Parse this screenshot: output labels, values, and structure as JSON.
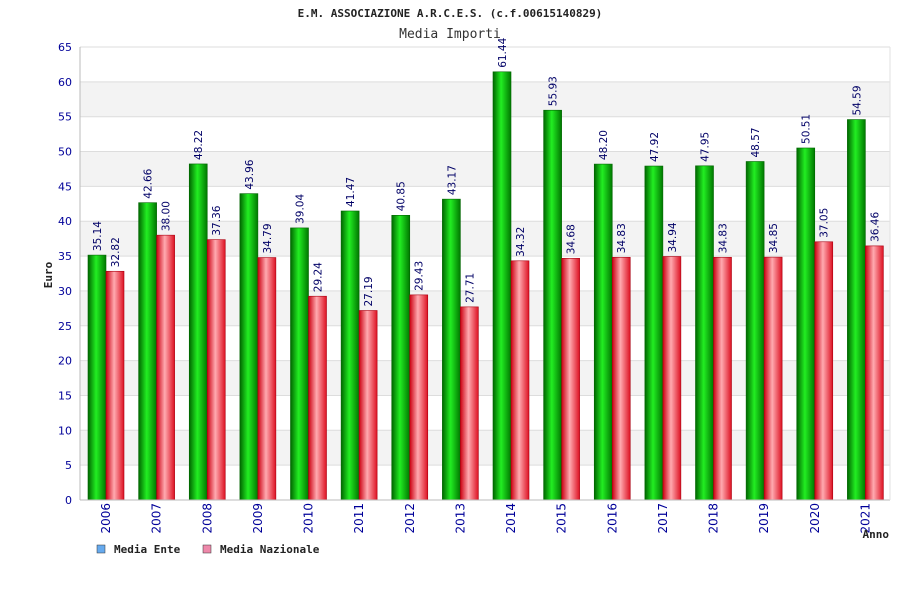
{
  "chart_data": {
    "type": "bar",
    "title": "E.M. ASSOCIAZIONE A.R.C.E.S. (c.f.00615140829)",
    "subtitle": "Media Importi",
    "xlabel": "Anno",
    "ylabel": "Euro",
    "ylim": [
      0,
      65
    ],
    "ytick_step": 5,
    "yticks": [
      "0",
      "5",
      "10",
      "15",
      "20",
      "25",
      "30",
      "35",
      "40",
      "45",
      "50",
      "55",
      "60",
      "65"
    ],
    "grid": true,
    "legend_position": "bottom-left",
    "categories": [
      "2006",
      "2007",
      "2008",
      "2009",
      "2010",
      "2011",
      "2012",
      "2013",
      "2014",
      "2015",
      "2016",
      "2017",
      "2018",
      "2019",
      "2020",
      "2021"
    ],
    "series": [
      {
        "name": "Media Ente",
        "color": "#00cc00",
        "legend_color": "#66aaee",
        "values": [
          35.14,
          42.66,
          48.22,
          43.96,
          39.04,
          41.47,
          40.85,
          43.17,
          61.44,
          55.93,
          48.2,
          47.92,
          47.95,
          48.57,
          50.51,
          54.59
        ],
        "labels": [
          "35.14",
          "42.66",
          "48.22",
          "43.96",
          "39.04",
          "41.47",
          "40.85",
          "43.17",
          "61.44",
          "55.93",
          "48.20",
          "47.92",
          "47.95",
          "48.57",
          "50.51",
          "54.59"
        ]
      },
      {
        "name": "Media Nazionale",
        "color": "#ee2233",
        "legend_color": "#ee88aa",
        "values": [
          32.82,
          38.0,
          37.36,
          34.79,
          29.24,
          27.19,
          29.43,
          27.71,
          34.32,
          34.68,
          34.83,
          34.94,
          34.83,
          34.85,
          37.05,
          36.46
        ],
        "labels": [
          "32.82",
          "38.00",
          "37.36",
          "34.79",
          "29.24",
          "27.19",
          "29.43",
          "27.71",
          "34.32",
          "34.68",
          "34.83",
          "34.94",
          "34.83",
          "34.85",
          "37.05",
          "36.46"
        ]
      }
    ]
  }
}
